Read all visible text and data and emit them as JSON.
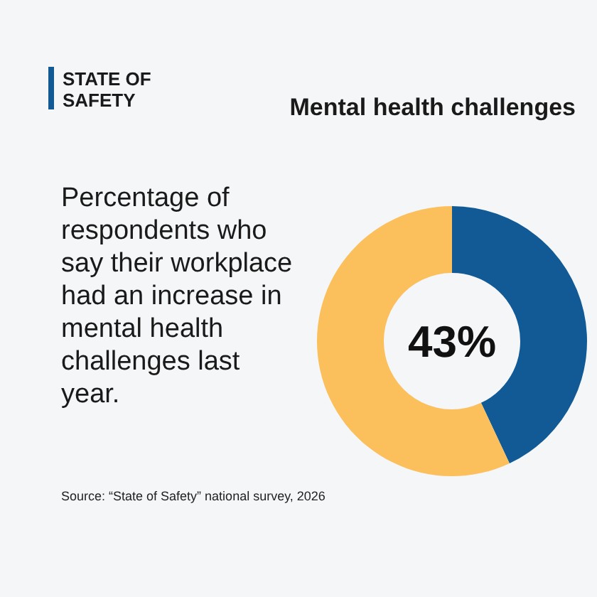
{
  "chart_data": {
    "type": "donut",
    "title": "Mental health challenges",
    "subtitle": "Percentage of respondents who say their workplace had an increase in mental health challenges last year.",
    "categories": [
      null,
      null
    ],
    "values": [
      43,
      57
    ],
    "colors": [
      "#115a96",
      "#fbbf5c"
    ],
    "annotations": [
      "STATE OF SAFETY",
      "Source: “State of Safety” national survey, 2026",
      "43%"
    ]
  }
}
